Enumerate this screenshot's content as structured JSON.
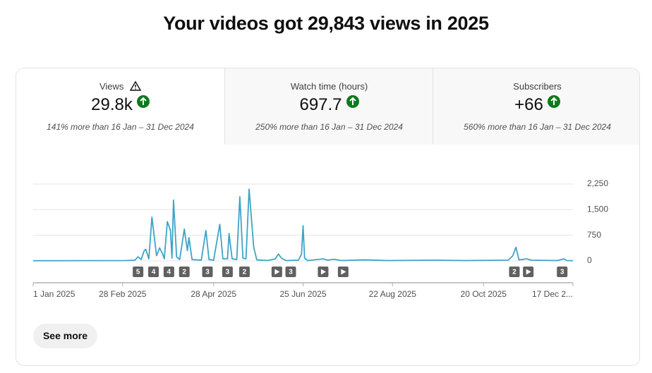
{
  "page": {
    "title": "Your videos got 29,843 views in 2025",
    "see_more": "See more"
  },
  "tabs": [
    {
      "label": "Views",
      "value": "29.8k",
      "note": "141% more than 16 Jan – 31 Dec 2024"
    },
    {
      "label": "Watch time (hours)",
      "value": "697.7",
      "note": "250% more than 16 Jan – 31 Dec 2024"
    },
    {
      "label": "Subscribers",
      "value": "+66",
      "note": "560% more than 16 Jan – 31 Dec 2024"
    }
  ],
  "chart_data": {
    "type": "line",
    "color": "#3fa3c8",
    "grid": true,
    "x": [
      "2025-01-01",
      "2025-03-02",
      "2025-03-08",
      "2025-03-10",
      "2025-03-12",
      "2025-03-14",
      "2025-03-15",
      "2025-03-17",
      "2025-03-19",
      "2025-03-20",
      "2025-03-22",
      "2025-03-24",
      "2025-03-26",
      "2025-03-27",
      "2025-03-29",
      "2025-03-31",
      "2025-04-01",
      "2025-04-02",
      "2025-04-04",
      "2025-04-06",
      "2025-04-09",
      "2025-04-11",
      "2025-04-12",
      "2025-04-14",
      "2025-04-17",
      "2025-04-20",
      "2025-04-23",
      "2025-04-25",
      "2025-04-28",
      "2025-05-02",
      "2025-05-04",
      "2025-05-07",
      "2025-05-08",
      "2025-05-10",
      "2025-05-13",
      "2025-05-15",
      "2025-05-17",
      "2025-05-19",
      "2025-05-21",
      "2025-05-24",
      "2025-05-26",
      "2025-06-02",
      "2025-06-07",
      "2025-06-09",
      "2025-06-11",
      "2025-06-14",
      "2025-06-22",
      "2025-06-24",
      "2025-06-25",
      "2025-06-26",
      "2025-06-28",
      "2025-07-08",
      "2025-07-11",
      "2025-07-15",
      "2025-07-20",
      "2025-08-04",
      "2025-08-19",
      "2025-09-18",
      "2025-10-08",
      "2025-11-05",
      "2025-11-08",
      "2025-11-10",
      "2025-11-12",
      "2025-11-17",
      "2025-11-20",
      "2025-12-07",
      "2025-12-11",
      "2025-12-13",
      "2025-12-17"
    ],
    "values": [
      5,
      10,
      20,
      120,
      40,
      300,
      340,
      60,
      1280,
      900,
      150,
      380,
      200,
      60,
      1150,
      900,
      80,
      1780,
      120,
      40,
      930,
      300,
      680,
      40,
      30,
      20,
      890,
      40,
      20,
      1070,
      60,
      60,
      800,
      60,
      40,
      1880,
      80,
      60,
      2100,
      400,
      30,
      10,
      60,
      200,
      80,
      10,
      20,
      200,
      1030,
      80,
      10,
      60,
      20,
      50,
      10,
      30,
      10,
      20,
      10,
      20,
      150,
      400,
      30,
      60,
      20,
      10,
      60,
      10,
      5
    ],
    "xlim": [
      "2025-01-01",
      "2025-12-17"
    ],
    "xticks": [
      {
        "value": "2025-01-01",
        "label": "1 Jan 2025"
      },
      {
        "value": "2025-02-28",
        "label": "28 Feb 2025"
      },
      {
        "value": "2025-04-28",
        "label": "28 Apr 2025"
      },
      {
        "value": "2025-06-25",
        "label": "25 Jun 2025"
      },
      {
        "value": "2025-08-22",
        "label": "22 Aug 2025"
      },
      {
        "value": "2025-10-20",
        "label": "20 Oct 2025"
      },
      {
        "value": "2025-12-17",
        "label": "17 Dec 2..."
      }
    ],
    "ylim": [
      0,
      2250
    ],
    "yticks": [
      0,
      750,
      {
        "value": 1500,
        "label": "1,500"
      },
      {
        "value": 2250,
        "label": "2,250"
      }
    ],
    "markers": [
      {
        "x": "2025-03-10",
        "label": "5"
      },
      {
        "x": "2025-03-20",
        "label": "4"
      },
      {
        "x": "2025-03-30",
        "label": "4"
      },
      {
        "x": "2025-04-09",
        "label": "2"
      },
      {
        "x": "2025-04-24",
        "label": "3"
      },
      {
        "x": "2025-05-07",
        "label": "3"
      },
      {
        "x": "2025-05-18",
        "label": "2"
      },
      {
        "x": "2025-06-08",
        "icon": "play"
      },
      {
        "x": "2025-06-17",
        "label": "3"
      },
      {
        "x": "2025-07-08",
        "icon": "play"
      },
      {
        "x": "2025-07-21",
        "icon": "play"
      },
      {
        "x": "2025-11-09",
        "label": "2"
      },
      {
        "x": "2025-11-18",
        "icon": "play"
      },
      {
        "x": "2025-12-10",
        "label": "3"
      }
    ]
  }
}
